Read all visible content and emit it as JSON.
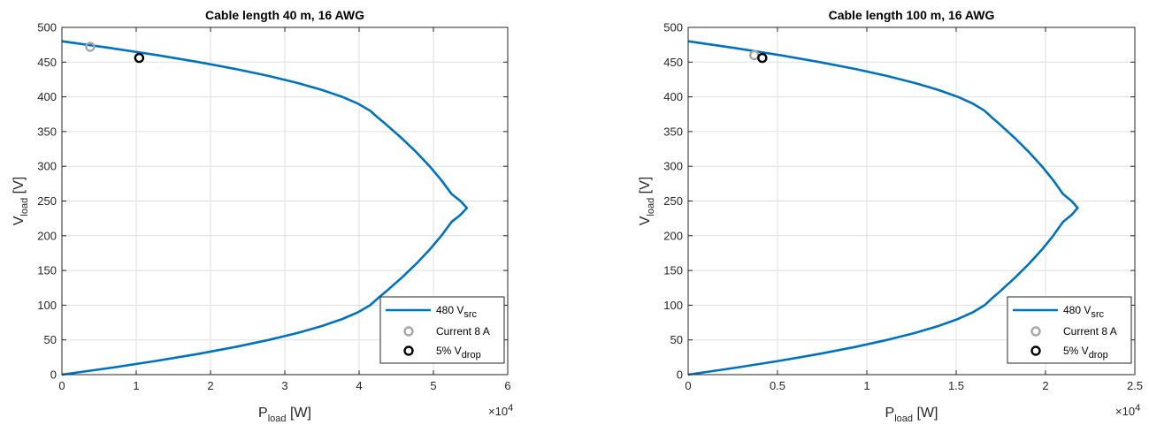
{
  "colors": {
    "curve": "#0072BD",
    "current_marker": "#A6A6A6",
    "vdrop_marker": "#000000",
    "grid": "#DFDFDF",
    "axis": "#262626"
  },
  "legend": {
    "line_main": "480 V",
    "line_sub": "src",
    "current_label": "Current 8 A",
    "vdrop_main": "5% V",
    "vdrop_sub": "drop",
    "placement": "bottom-right"
  },
  "axis_text": {
    "ylabel_main": "V",
    "ylabel_sub": "load",
    "ylabel_unit": " [V]",
    "xlabel_main": "P",
    "xlabel_sub": "load",
    "xlabel_unit": " [W]",
    "exp_base": "×10",
    "exp_power": "4"
  },
  "chart_data": [
    {
      "type": "line",
      "title": "Cable length 40 m, 16 AWG",
      "xlim": [
        0,
        60000
      ],
      "ylim": [
        0,
        500
      ],
      "xticks": [
        0,
        10000,
        20000,
        30000,
        40000,
        50000,
        60000
      ],
      "xtick_labels": [
        "0",
        "1",
        "2",
        "3",
        "4",
        "5",
        "6"
      ],
      "yticks": [
        0,
        50,
        100,
        150,
        200,
        250,
        300,
        350,
        400,
        450,
        500
      ],
      "grid": true,
      "series": [
        {
          "name": "480 Vsrc",
          "source_voltage": 480,
          "peak_power": 54500,
          "x": [
            0,
            6710,
            12850,
            18420,
            23410,
            27840,
            31700,
            34990,
            37720,
            39880,
            41490,
            42530,
            43660,
            45780,
            47730,
            49490,
            51070,
            52450,
            53640,
            54500,
            53640,
            52450,
            51070,
            49490,
            47730,
            45780,
            43660,
            42530,
            41490,
            39880,
            37720,
            34990,
            31700,
            27840,
            23410,
            18420,
            12850,
            6710,
            0
          ],
          "y": [
            480,
            470,
            460,
            450,
            440,
            430,
            420,
            410,
            400,
            390,
            380,
            370,
            360,
            340,
            320,
            300,
            280,
            260,
            250,
            240,
            230,
            220,
            200,
            180,
            160,
            140,
            120,
            110,
            100,
            90,
            80,
            70,
            60,
            50,
            40,
            30,
            20,
            10,
            0
          ]
        }
      ],
      "markers": {
        "current": {
          "x": 3800,
          "y": 472
        },
        "vdrop": {
          "x": 10400,
          "y": 456
        }
      }
    },
    {
      "type": "line",
      "title": "Cable length 100 m, 16 AWG",
      "xlim": [
        0,
        25000
      ],
      "ylim": [
        0,
        500
      ],
      "xticks": [
        0,
        5000,
        10000,
        15000,
        20000,
        25000
      ],
      "xtick_labels": [
        "0",
        "0.5",
        "1",
        "1.5",
        "2",
        "2.5"
      ],
      "yticks": [
        0,
        50,
        100,
        150,
        200,
        250,
        300,
        350,
        400,
        450,
        500
      ],
      "grid": true,
      "series": [
        {
          "name": "480 Vsrc",
          "source_voltage": 480,
          "peak_power": 21800,
          "x": [
            0,
            2680,
            5140,
            7370,
            9370,
            11140,
            12680,
            14000,
            15090,
            15950,
            16590,
            17010,
            17460,
            18310,
            19090,
            19800,
            20430,
            20980,
            21460,
            21800,
            21460,
            20980,
            20430,
            19800,
            19090,
            18310,
            17460,
            17010,
            16590,
            15950,
            15090,
            14000,
            12680,
            11140,
            9370,
            7370,
            5140,
            2680,
            0
          ],
          "y": [
            480,
            470,
            460,
            450,
            440,
            430,
            420,
            410,
            400,
            390,
            380,
            370,
            360,
            340,
            320,
            300,
            280,
            260,
            250,
            240,
            230,
            220,
            200,
            180,
            160,
            140,
            120,
            110,
            100,
            90,
            80,
            70,
            60,
            50,
            40,
            30,
            20,
            10,
            0
          ]
        }
      ],
      "markers": {
        "current": {
          "x": 3700,
          "y": 460
        },
        "vdrop": {
          "x": 4150,
          "y": 456
        }
      }
    }
  ]
}
